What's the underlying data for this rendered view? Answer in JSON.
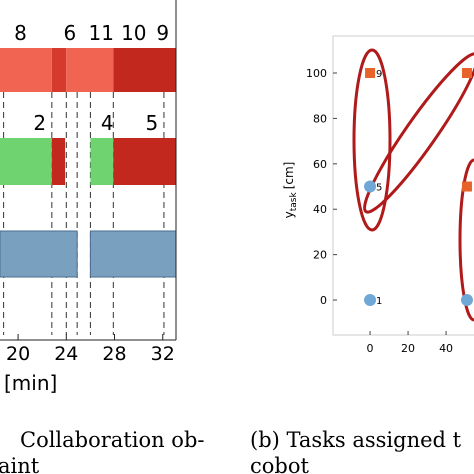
{
  "left_panel": {
    "xlim": [
      18.5,
      33.1
    ],
    "xticks": [
      20,
      24,
      28,
      32
    ],
    "xlabel": "[min]",
    "rows": [
      {
        "segments": [
          {
            "start": 18.5,
            "end": 22.8,
            "color": "#f26452"
          },
          {
            "start": 22.8,
            "end": 24,
            "color": "#d63a2c"
          },
          {
            "start": 24,
            "end": 27.9,
            "color": "#f26452"
          },
          {
            "start": 27.9,
            "end": 33.1,
            "color": "#c3281e"
          }
        ],
        "labels": [
          {
            "text": "8",
            "at": 20.2
          },
          {
            "text": "6",
            "at": 24.3
          },
          {
            "text": "11",
            "at": 26.9
          },
          {
            "text": "10",
            "at": 29.6
          },
          {
            "text": "9",
            "at": 32
          }
        ]
      },
      {
        "segments": [
          {
            "start": 18.5,
            "end": 22.8,
            "color": "#6fd36f"
          },
          {
            "start": 22.8,
            "end": 23.9,
            "color": "#c3281e"
          },
          {
            "start": 26,
            "end": 27.9,
            "color": "#6fd36f"
          },
          {
            "start": 27.9,
            "end": 33.1,
            "color": "#c3281e"
          }
        ],
        "labels": [
          {
            "text": "2",
            "at": 21.8
          },
          {
            "text": "4",
            "at": 27.4
          },
          {
            "text": "5",
            "at": 31.1
          }
        ]
      },
      {
        "segments": [
          {
            "start": 18.5,
            "end": 24.9,
            "color": "#7aa0c0"
          },
          {
            "start": 26,
            "end": 33.1,
            "color": "#7aa0c0"
          }
        ],
        "labels": []
      }
    ],
    "dashes": [
      18.8,
      22.8,
      24,
      24.9,
      26,
      27.9,
      32.1
    ],
    "caption": [
      "Collaboration ob-",
      "aint"
    ]
  },
  "right_panel": {
    "xlim": [
      -19.5,
      54.7
    ],
    "ylim": [
      -15.4,
      116.3
    ],
    "xticks": [
      0,
      20,
      40
    ],
    "yticks": [
      0,
      20,
      40,
      60,
      80,
      100
    ],
    "ylabel": {
      "main": "y",
      "sub": "task",
      "unit": "[cm]"
    },
    "points": [
      {
        "x": 0,
        "y": 0,
        "shape": "circle",
        "color": "#6fa8d6",
        "label": "1"
      },
      {
        "x": 0,
        "y": 50,
        "shape": "circle",
        "color": "#6fa8d6",
        "label": "5"
      },
      {
        "x": 0,
        "y": 100,
        "shape": "square",
        "color": "#e8632a",
        "label": "9"
      },
      {
        "x": 51,
        "y": 100,
        "shape": "square",
        "color": "#e8632a"
      },
      {
        "x": 51,
        "y": 50,
        "shape": "square",
        "color": "#e8632a"
      },
      {
        "x": 51,
        "y": 0,
        "shape": "circle",
        "color": "#6fa8d6"
      }
    ],
    "caption": [
      "(b) Tasks assigned t",
      "cobot"
    ]
  }
}
